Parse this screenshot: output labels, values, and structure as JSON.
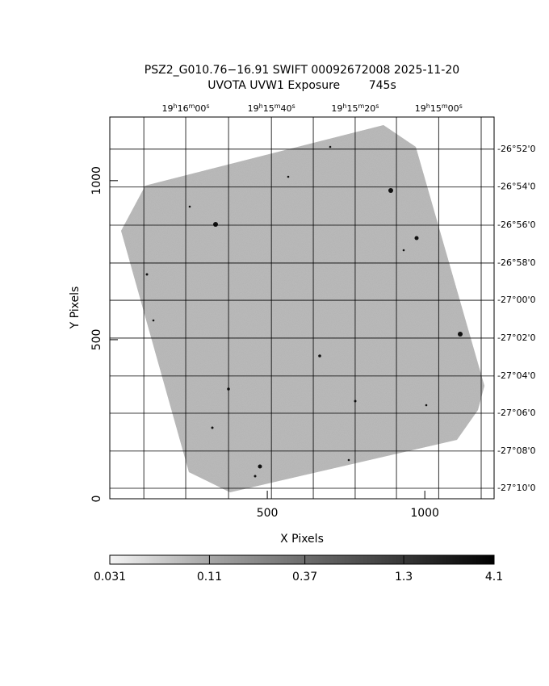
{
  "chart_data": {
    "type": "image",
    "title": "PSZ2_G010.76−16.91 SWIFT 00092672008 2025-11-20",
    "subtitle": "UVOTA UVW1 Exposure        745s",
    "xlabel": "X Pixels",
    "ylabel": "Y Pixels",
    "xlim": [
      0,
      1220
    ],
    "ylim": [
      0,
      1200
    ],
    "xticks": [
      500,
      1000
    ],
    "yticks": [
      0,
      500,
      1000
    ],
    "x2ticks": [
      {
        "value": 241,
        "label": "19h16m00s"
      },
      {
        "value": 513,
        "label": "19h15m40s"
      },
      {
        "value": 779,
        "label": "19h15m20s"
      },
      {
        "value": 1044,
        "label": "19h15m00s"
      }
    ],
    "x2grid": [
      108,
      241,
      377,
      513,
      646,
      779,
      910,
      1044,
      1179
    ],
    "y2ticks": [
      {
        "value": 1099,
        "label": "-26°52'0"
      },
      {
        "value": 980,
        "label": "-26°54'0"
      },
      {
        "value": 860,
        "label": "-26°56'0"
      },
      {
        "value": 741,
        "label": "-26°58'0"
      },
      {
        "value": 624,
        "label": "-27°00'0"
      },
      {
        "value": 505,
        "label": "-27°02'0"
      },
      {
        "value": 386,
        "label": "-27°04'0"
      },
      {
        "value": 269,
        "label": "-27°06'0"
      },
      {
        "value": 150,
        "label": "-27°08'0"
      },
      {
        "value": 33,
        "label": "-27°10'0"
      }
    ],
    "grid": true,
    "colorbar": {
      "lim": [
        0.031,
        4.1
      ],
      "log": true,
      "ticks": [
        0.031,
        0.11,
        0.37,
        1.3,
        4.1
      ]
    }
  }
}
